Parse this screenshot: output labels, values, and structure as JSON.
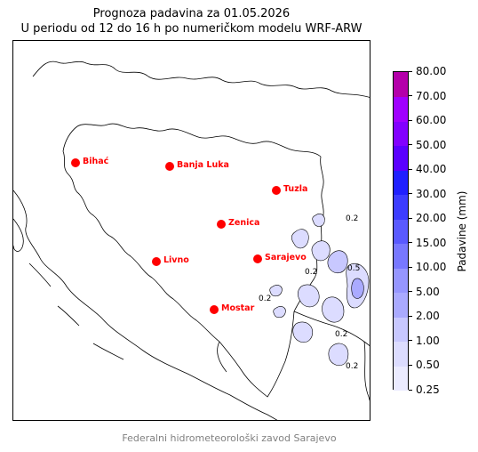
{
  "title": {
    "line1": "Prognoza padavina za 01.05.2026",
    "line2": "U periodu od 12 do 16 h po numeričkom modelu WRF-ARW"
  },
  "map": {
    "cities": [
      {
        "name": "Bihać"
      },
      {
        "name": "Banja Luka"
      },
      {
        "name": "Tuzla"
      },
      {
        "name": "Zenica"
      },
      {
        "name": "Livno"
      },
      {
        "name": "Sarajevo"
      },
      {
        "name": "Mostar"
      }
    ],
    "city_marker_color": "#ff0000",
    "contour_labels": [
      "0.2",
      "0.2",
      "0.5",
      "0.2",
      "0.2",
      "0.2"
    ]
  },
  "colorbar": {
    "title": "Padavine (mm)",
    "levels": [
      "0.25",
      "0.50",
      "1.00",
      "2.00",
      "5.00",
      "10.00",
      "15.00",
      "20.00",
      "30.00",
      "40.00",
      "50.00",
      "60.00",
      "70.00",
      "80.00"
    ],
    "colors": [
      "#ebebff",
      "#dcdcff",
      "#c8c8ff",
      "#aaaaff",
      "#9696ff",
      "#7878ff",
      "#5a5aff",
      "#3c3cff",
      "#2020ff",
      "#5a00ff",
      "#8200ff",
      "#a000ff",
      "#b400aa"
    ]
  },
  "footer": "Federalni hidrometeorološki zavod Sarajevo"
}
